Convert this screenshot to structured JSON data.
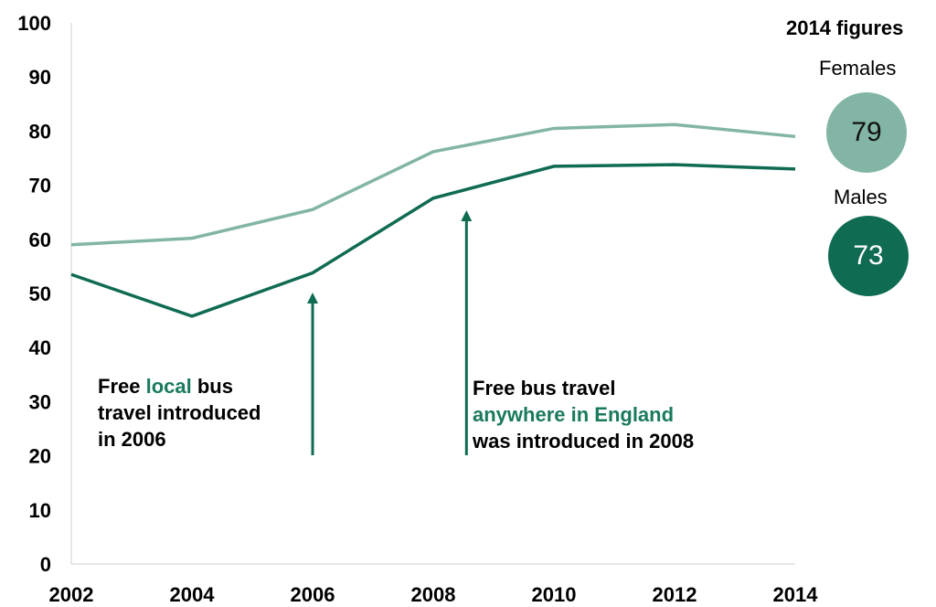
{
  "chart_data": {
    "type": "line",
    "x": [
      2002,
      2004,
      2006,
      2008,
      2010,
      2012,
      2014
    ],
    "y_ticks": [
      0,
      10,
      20,
      30,
      40,
      50,
      60,
      70,
      80,
      90,
      100
    ],
    "ylim": [
      0,
      100
    ],
    "series": [
      {
        "name": "Females",
        "values": [
          59,
          60.2,
          65.5,
          76.2,
          80.5,
          81.2,
          79
        ],
        "color": "#82b5a5"
      },
      {
        "name": "Males",
        "values": [
          53.5,
          45.8,
          53.8,
          67.6,
          73.5,
          73.8,
          73
        ],
        "color": "#0f6b52"
      }
    ],
    "annotations": [
      {
        "line1_start": "Free ",
        "line1_highlight": "local",
        "line1_end": " bus",
        "line2": "travel introduced",
        "line3": "in 2006",
        "arrow_x": 2006
      },
      {
        "line1": "Free bus travel",
        "line2_highlight": "anywhere in England",
        "line3": "was introduced in 2008",
        "arrow_x": 2008.55
      }
    ],
    "panel": {
      "title": "2014 figures",
      "females_label": "Females",
      "females_value": "79",
      "males_label": "Males",
      "males_value": "73"
    }
  }
}
